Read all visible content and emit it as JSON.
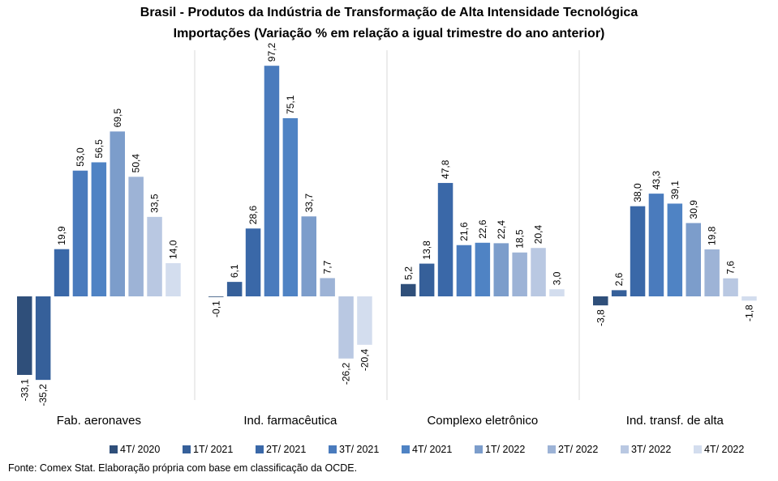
{
  "title_line1": "Brasil - Produtos da Indústria de Transformação de Alta Intensidade Tecnológica",
  "title_line2": "Importações (Variação % em relação a igual trimestre do ano anterior)",
  "source": "Fonte: Comex Stat. Elaboração própria com base em classificação da OCDE.",
  "colors": [
    "#2f4f7a",
    "#36609a",
    "#3a68a8",
    "#4a7bbd",
    "#4f83c4",
    "#7c9dcb",
    "#9db3d6",
    "#b9c8e2",
    "#d3ddee"
  ],
  "chart_data": {
    "type": "bar",
    "title": "Brasil - Produtos da Indústria de Transformação de Alta Intensidade Tecnológica Importações (Variação % em relação a igual trimestre do ano anterior)",
    "categories": [
      "Fab. aeronaves",
      "Ind. farmacêutica",
      "Complexo eletrônico",
      "Ind. transf. de alta"
    ],
    "series": [
      {
        "name": "4T/ 2020",
        "values": [
          -33.1,
          -0.1,
          5.2,
          -3.8
        ]
      },
      {
        "name": "1T/ 2021",
        "values": [
          -35.2,
          6.1,
          13.8,
          2.6
        ]
      },
      {
        "name": "2T/ 2021",
        "values": [
          19.9,
          28.6,
          47.8,
          38.0
        ]
      },
      {
        "name": "3T/ 2021",
        "values": [
          53.0,
          97.2,
          21.6,
          43.3
        ]
      },
      {
        "name": "4T/ 2021",
        "values": [
          56.5,
          75.1,
          22.6,
          39.1
        ]
      },
      {
        "name": "1T/ 2022",
        "values": [
          69.5,
          33.7,
          22.4,
          30.9
        ]
      },
      {
        "name": "2T/ 2022",
        "values": [
          50.4,
          7.7,
          18.5,
          19.8
        ]
      },
      {
        "name": "3T/ 2022",
        "values": [
          33.5,
          -26.2,
          20.4,
          7.6
        ]
      },
      {
        "name": "4T/ 2022",
        "values": [
          14.0,
          -20.4,
          3.0,
          -1.8
        ]
      }
    ],
    "grid": false,
    "legend_position": "bottom",
    "data_labels": true,
    "decimal_separator": ","
  }
}
